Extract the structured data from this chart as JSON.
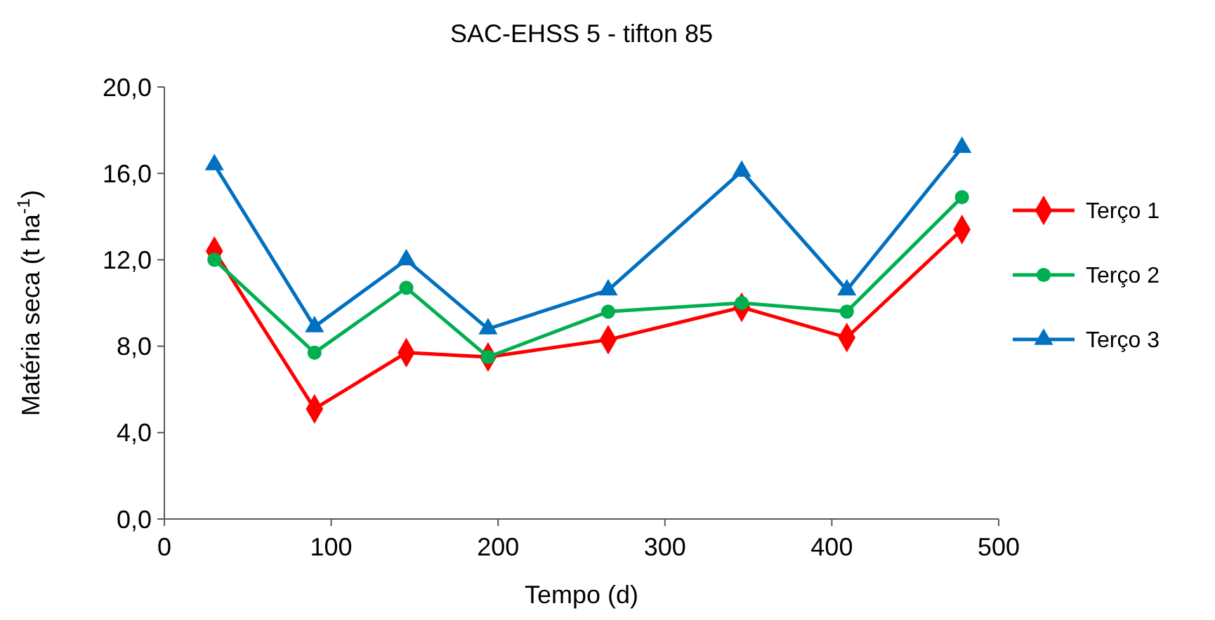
{
  "chart_data": {
    "type": "line",
    "title": "SAC-EHSS 5 - tifton 85",
    "xlabel": "Tempo (d)",
    "ylabel": "Matéria seca (t ha$^{-1}$)",
    "x": [
      30,
      90,
      145,
      194,
      266,
      346,
      409,
      478
    ],
    "series": [
      {
        "name": "Terço 1",
        "color": "#ff0000",
        "marker": "diamond",
        "values": [
          12.4,
          5.1,
          7.7,
          7.5,
          8.3,
          9.8,
          8.4,
          13.4
        ]
      },
      {
        "name": "Terço 2",
        "color": "#00b050",
        "marker": "circle",
        "values": [
          12.0,
          7.7,
          10.7,
          7.5,
          9.6,
          10.0,
          9.6,
          14.9
        ]
      },
      {
        "name": "Terço 3",
        "color": "#0070c0",
        "marker": "triangle",
        "values": [
          16.4,
          8.9,
          12.0,
          8.8,
          10.6,
          16.1,
          10.6,
          17.2
        ]
      }
    ],
    "xlim": [
      0,
      500
    ],
    "xticks": [
      0,
      100,
      200,
      300,
      400,
      500
    ],
    "ylim": [
      0,
      20
    ],
    "yticks": [
      {
        "value": 0,
        "label": "0,0"
      },
      {
        "value": 4,
        "label": "4,0"
      },
      {
        "value": 8,
        "label": "8,0"
      },
      {
        "value": 12,
        "label": "12,0"
      },
      {
        "value": 16,
        "label": "16,0"
      },
      {
        "value": 20,
        "label": "20,0"
      }
    ],
    "grid": false,
    "legend": "right",
    "line_style": "solid"
  }
}
